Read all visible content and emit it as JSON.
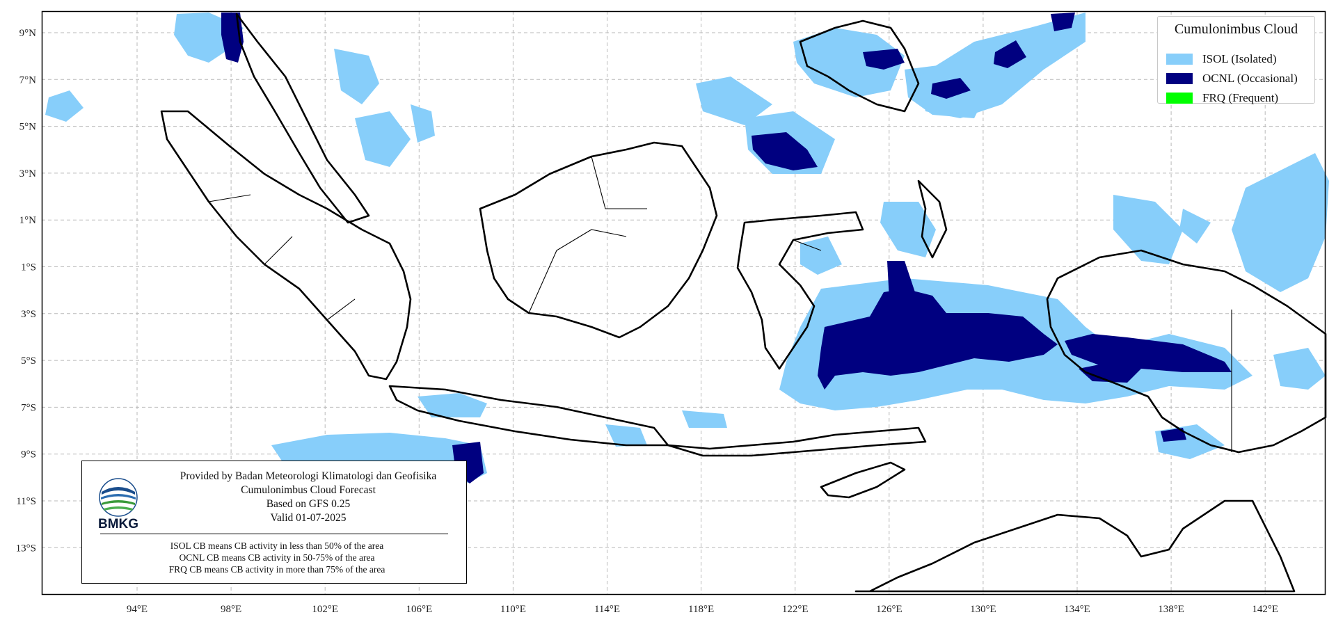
{
  "map": {
    "lat_labels": [
      "9°N",
      "7°N",
      "5°N",
      "3°N",
      "1°N",
      "1°S",
      "3°S",
      "5°S",
      "7°S",
      "9°S",
      "11°S",
      "13°S"
    ],
    "lon_labels": [
      "94°E",
      "98°E",
      "102°E",
      "106°E",
      "110°E",
      "114°E",
      "118°E",
      "122°E",
      "126°E",
      "130°E",
      "134°E",
      "138°E",
      "142°E"
    ],
    "colors": {
      "isol": "#87cefa",
      "ocnl": "#000080",
      "frq": "#00ff00",
      "coast": "#000000",
      "grid": "#b9b9b9"
    }
  },
  "legend": {
    "title": "Cumulonimbus Cloud",
    "items": [
      {
        "label": "ISOL (Isolated)",
        "color": "#87cefa"
      },
      {
        "label": "OCNL (Occasional)",
        "color": "#000080"
      },
      {
        "label": "FRQ (Frequent)",
        "color": "#00ff00"
      }
    ]
  },
  "info": {
    "provider": "Provided by Badan Meteorologi Klimatologi dan Geofisika",
    "product": "Cumulonimbus Cloud Forecast",
    "model": "Based on GFS 0.25",
    "valid": "Valid 01-07-2025",
    "logo_text": "BMKG",
    "notes": [
      "ISOL CB means CB activity in less than 50% of the area",
      "OCNL CB means CB activity in 50-75% of the area",
      "FRQ CB means CB activity in more than 75% of the area"
    ]
  }
}
